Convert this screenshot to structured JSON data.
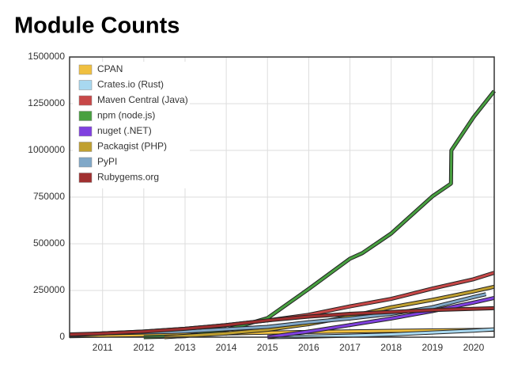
{
  "chart_data": {
    "type": "line",
    "title": "Module Counts",
    "xlim": [
      2010.2,
      2020.5
    ],
    "xticks": [
      2011,
      2012,
      2013,
      2014,
      2015,
      2016,
      2017,
      2018,
      2019,
      2020
    ],
    "ylim": [
      0,
      1500000
    ],
    "yticks": [
      0,
      250000,
      500000,
      750000,
      1000000,
      1250000,
      1500000
    ],
    "grid": true,
    "legend": "upper-left",
    "series": [
      {
        "name": "CPAN",
        "color": "#f0c040",
        "x": [
          2010.2,
          2012,
          2014,
          2016,
          2018,
          2020.5
        ],
        "values": [
          5000,
          12000,
          20000,
          28000,
          34000,
          40000
        ]
      },
      {
        "name": "Crates.io (Rust)",
        "color": "#a8d8f0",
        "x": [
          2015,
          2016,
          2017,
          2018,
          2019,
          2020,
          2020.5
        ],
        "values": [
          0,
          3000,
          8000,
          15000,
          25000,
          35000,
          42000
        ]
      },
      {
        "name": "Maven Central (Java)",
        "color": "#c84848",
        "x": [
          2010.2,
          2011,
          2012,
          2013,
          2014,
          2015,
          2016,
          2017,
          2018,
          2019,
          2020,
          2020.5
        ],
        "values": [
          10000,
          20000,
          30000,
          45000,
          65000,
          90000,
          120000,
          165000,
          205000,
          260000,
          310000,
          345000
        ]
      },
      {
        "name": "npm (node.js)",
        "color": "#48a040",
        "x": [
          2012,
          2013,
          2014,
          2014.5,
          2015,
          2016,
          2017,
          2017.3,
          2018,
          2019,
          2019.45,
          2019.46,
          2020,
          2020.5
        ],
        "values": [
          0,
          5000,
          40000,
          70000,
          102000,
          258000,
          420000,
          450000,
          555000,
          754000,
          822000,
          1000000,
          1178000,
          1318000
        ]
      },
      {
        "name": "nuget (.NET)",
        "color": "#8040e0",
        "x": [
          2015,
          2016,
          2017,
          2018,
          2019,
          2020,
          2020.5
        ],
        "values": [
          0,
          30000,
          65000,
          100000,
          140000,
          185000,
          210000
        ]
      },
      {
        "name": "Packagist (PHP)",
        "color": "#c0a030",
        "x": [
          2012.5,
          2014,
          2015,
          2016,
          2017,
          2018,
          2019,
          2020,
          2020.5
        ],
        "values": [
          0,
          20000,
          40000,
          70000,
          110000,
          160000,
          200000,
          245000,
          270000
        ]
      },
      {
        "name": "PyPI",
        "color": "#80a8c8",
        "x": [
          2011,
          2013,
          2015,
          2016,
          2017,
          2018,
          2019,
          2020,
          2020.3
        ],
        "values": [
          20000,
          30000,
          55000,
          80000,
          100000,
          125000,
          160000,
          215000,
          230000
        ]
      },
      {
        "name": "Rubygems.org",
        "color": "#a03030",
        "x": [
          2010.2,
          2011,
          2012,
          2013,
          2014,
          2015,
          2016,
          2017,
          2018,
          2019,
          2020.5
        ],
        "values": [
          15000,
          20000,
          30000,
          45000,
          65000,
          90000,
          110000,
          125000,
          135000,
          145000,
          155000
        ]
      }
    ]
  }
}
